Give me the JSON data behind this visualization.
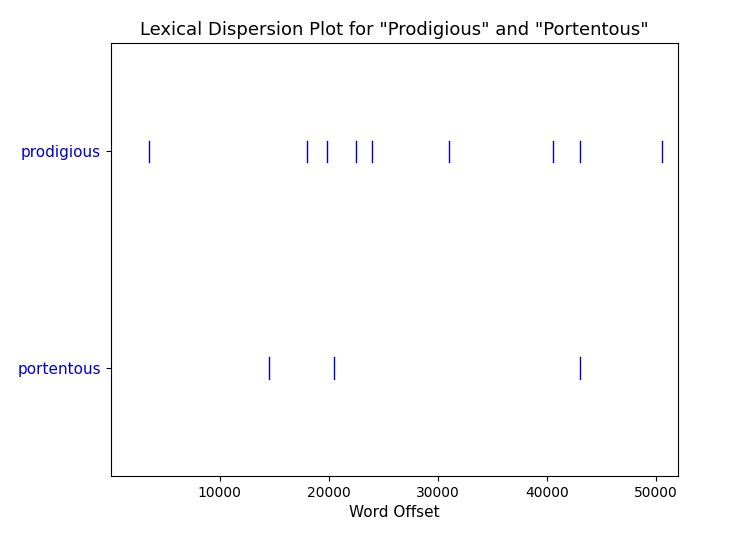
{
  "title": "Lexical Dispersion Plot for \"Prodigious\" and \"Portentous\"",
  "xlabel": "Word Offset",
  "words": [
    "portentous",
    "prodigious"
  ],
  "prodigious_offsets": [
    3500,
    18000,
    19800,
    22500,
    24000,
    31000,
    40500,
    43000,
    50500
  ],
  "portentous_offsets": [
    14500,
    20500,
    43000
  ],
  "color": "#0000cc",
  "xlim": [
    0,
    52000
  ],
  "ylim": [
    -0.5,
    1.5
  ],
  "ytick_positions": [
    0,
    1
  ],
  "ytick_labels": [
    "portentous",
    "prodigious"
  ],
  "marker_height": 0.1,
  "title_fontsize": 13,
  "label_fontsize": 11,
  "ytick_fontsize": 11,
  "xtick_fontsize": 10,
  "xticks": [
    10000,
    20000,
    30000,
    40000,
    50000
  ],
  "xtick_labels": [
    "10000",
    "20000",
    "30000",
    "40000",
    "50000"
  ],
  "figsize": [
    7.37,
    5.41
  ],
  "dpi": 100
}
